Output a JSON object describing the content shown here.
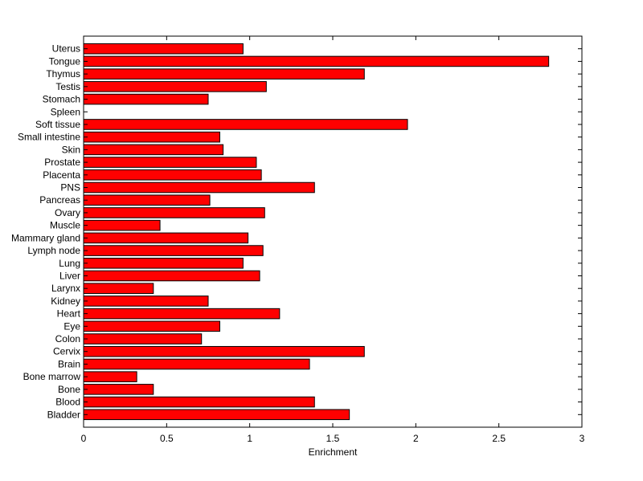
{
  "chart_data": {
    "type": "bar",
    "orientation": "horizontal",
    "categories": [
      "Bladder",
      "Blood",
      "Bone",
      "Bone marrow",
      "Brain",
      "Cervix",
      "Colon",
      "Eye",
      "Heart",
      "Kidney",
      "Larynx",
      "Liver",
      "Lung",
      "Lymph node",
      "Mammary gland",
      "Muscle",
      "Ovary",
      "Pancreas",
      "PNS",
      "Placenta",
      "Prostate",
      "Skin",
      "Small intestine",
      "Soft tissue",
      "Spleen",
      "Stomach",
      "Testis",
      "Thymus",
      "Tongue",
      "Uterus"
    ],
    "values": [
      1.6,
      1.39,
      0.42,
      0.32,
      1.36,
      1.69,
      0.71,
      0.82,
      1.18,
      0.75,
      0.42,
      1.06,
      0.96,
      1.08,
      0.99,
      0.46,
      1.09,
      0.76,
      1.39,
      1.07,
      1.04,
      0.84,
      0.82,
      1.95,
      0.0,
      0.75,
      1.1,
      1.69,
      2.8,
      0.96
    ],
    "title": "",
    "xlabel": "Enrichment",
    "ylabel": "",
    "xlim": [
      0,
      3
    ],
    "xticks": [
      "0",
      "0.5",
      "1",
      "1.5",
      "2",
      "2.5",
      "3"
    ],
    "grid": false,
    "bar_color": "#ff0000",
    "bar_edge_color": "#000000"
  }
}
